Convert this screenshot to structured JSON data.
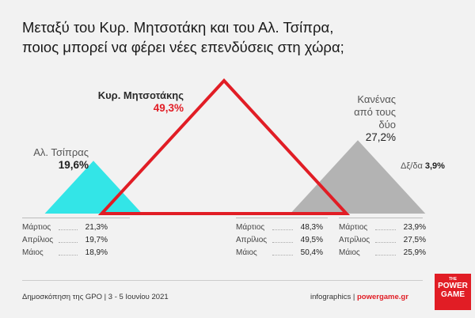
{
  "title": {
    "line1": "Μεταξύ του Κυρ. Μητσοτάκη και του Αλ. Τσίπρα,",
    "line2": "ποιος μπορεί να φέρει νέες επενδύσεις στη χώρα;"
  },
  "colors": {
    "tsipras": "#33e5e7",
    "mitsotakis": "#e11d25",
    "none": "#b3b3b3",
    "accent": "#e11d25"
  },
  "chart_data": {
    "type": "bar",
    "series": [
      {
        "name": "Αλ. Τσίπρας",
        "value": 19.6,
        "value_label": "19,6%",
        "history": [
          {
            "month": "Μάρτιος",
            "value": "21,3%"
          },
          {
            "month": "Απρίλιος",
            "value": "19,7%"
          },
          {
            "month": "Μάιος",
            "value": "18,9%"
          }
        ]
      },
      {
        "name": "Κυρ. Μητσοτάκης",
        "value": 49.3,
        "value_label": "49,3%",
        "history": [
          {
            "month": "Μάρτιος",
            "value": "48,3%"
          },
          {
            "month": "Απρίλιος",
            "value": "49,5%"
          },
          {
            "month": "Μάιος",
            "value": "50,4%"
          }
        ]
      },
      {
        "name_lines": [
          "Κανένας",
          "από τους",
          "δύο"
        ],
        "value": 27.2,
        "value_label": "27,2%",
        "history": [
          {
            "month": "Μάρτιος",
            "value": "23,9%"
          },
          {
            "month": "Απρίλιος",
            "value": "27,5%"
          },
          {
            "month": "Μάιος",
            "value": "25,9%"
          }
        ]
      }
    ],
    "dkna": {
      "label": "Δξ/δα",
      "value": "3,9%"
    }
  },
  "footer": {
    "source": "Δημοσκόπηση της GPO | 3 - 5 Ιουνίου 2021",
    "credit_prefix": "infographics | ",
    "credit_site": "powergame.gr",
    "logo_small": "THE",
    "logo_line1": "POWER",
    "logo_line2": "GAME"
  }
}
